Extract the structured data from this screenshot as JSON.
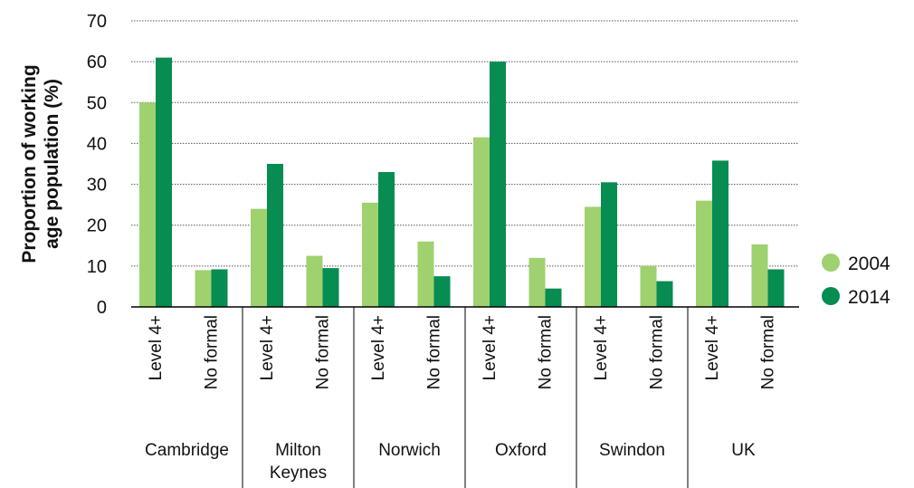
{
  "chart_data": {
    "type": "bar",
    "ylabel_lines": [
      "Proportion of working",
      "age population (%)"
    ],
    "ylim": [
      0,
      70
    ],
    "yticks": [
      0,
      10,
      20,
      30,
      40,
      50,
      60,
      70
    ],
    "grid": "horizontal dotted",
    "legend_position": "right",
    "groups": [
      {
        "name": "Cambridge",
        "name_lines": [
          "Cambridge"
        ]
      },
      {
        "name": "Milton Keynes",
        "name_lines": [
          "Milton",
          "Keynes"
        ]
      },
      {
        "name": "Norwich",
        "name_lines": [
          "Norwich"
        ]
      },
      {
        "name": "Oxford",
        "name_lines": [
          "Oxford"
        ]
      },
      {
        "name": "Swindon",
        "name_lines": [
          "Swindon"
        ]
      },
      {
        "name": "UK",
        "name_lines": [
          "UK"
        ]
      }
    ],
    "subcategories": [
      "Level 4+",
      "No formal"
    ],
    "series": [
      {
        "name": "2004",
        "color": "#9fd16e",
        "values": [
          [
            50,
            9
          ],
          [
            24,
            12.5
          ],
          [
            25.5,
            16
          ],
          [
            41.5,
            12
          ],
          [
            24.5,
            10
          ],
          [
            26,
            15.3
          ]
        ]
      },
      {
        "name": "2014",
        "color": "#078c52",
        "values": [
          [
            61,
            9.2
          ],
          [
            35,
            9.5
          ],
          [
            33,
            7.5
          ],
          [
            60,
            4.5
          ],
          [
            30.5,
            6.3
          ],
          [
            35.8,
            9.2
          ]
        ]
      }
    ]
  }
}
